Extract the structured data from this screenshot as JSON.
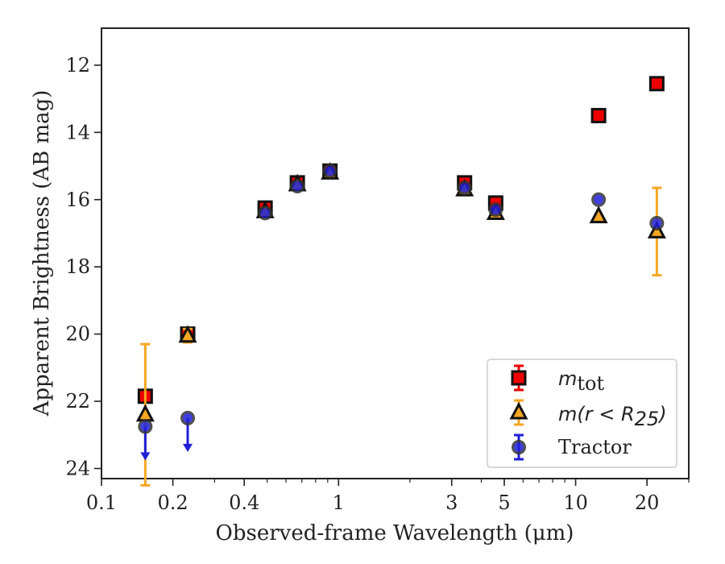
{
  "chart_data": {
    "type": "scatter",
    "xlabel": "Observed-frame Wavelength (μm)",
    "ylabel": "Apparent Brightness (AB mag)",
    "x_scale": "log",
    "xlim": [
      0.1,
      30
    ],
    "ylim": [
      24.3,
      10.9
    ],
    "x_ticks": [
      0.1,
      0.2,
      0.4,
      1,
      3,
      5,
      10,
      20
    ],
    "x_tick_labels": [
      "0.1",
      "0.2",
      "0.4",
      "1",
      "3",
      "5",
      "10",
      "20"
    ],
    "y_ticks": [
      12,
      14,
      16,
      18,
      20,
      22,
      24
    ],
    "y_tick_labels": [
      "12",
      "14",
      "16",
      "18",
      "20",
      "22",
      "24"
    ],
    "grid": false,
    "legend_position": "lower-right",
    "series": [
      {
        "name": "m_tot",
        "color": "#ee0000",
        "edge": "#111111",
        "marker": "square",
        "points": [
          {
            "x": 0.153,
            "y": 21.85,
            "err": 0.1
          },
          {
            "x": 0.231,
            "y": 20.0,
            "err": 0.1
          },
          {
            "x": 0.49,
            "y": 16.25
          },
          {
            "x": 0.67,
            "y": 15.5
          },
          {
            "x": 0.92,
            "y": 15.15
          },
          {
            "x": 3.4,
            "y": 15.5
          },
          {
            "x": 4.6,
            "y": 16.1
          },
          {
            "x": 12.5,
            "y": 13.5
          },
          {
            "x": 22.0,
            "y": 12.55
          }
        ]
      },
      {
        "name": "m(r<R25)",
        "color": "#f5a623",
        "edge": "#111111",
        "marker": "triangle",
        "points": [
          {
            "x": 0.153,
            "y": 22.4,
            "err_up": 2.1,
            "err_down": 2.1
          },
          {
            "x": 0.231,
            "y": 20.05,
            "err": 0.2
          },
          {
            "x": 0.49,
            "y": 16.35
          },
          {
            "x": 0.67,
            "y": 15.55
          },
          {
            "x": 0.92,
            "y": 15.2
          },
          {
            "x": 3.4,
            "y": 15.7
          },
          {
            "x": 4.6,
            "y": 16.4
          },
          {
            "x": 12.5,
            "y": 16.5
          },
          {
            "x": 22.0,
            "y": 16.95,
            "err_up": 1.3,
            "err_down": 1.3
          }
        ]
      },
      {
        "name": "Tractor",
        "color": "#1f1fd8",
        "edge": "#333333",
        "marker": "circle",
        "points": [
          {
            "x": 0.153,
            "y": 22.75,
            "upper_limit": true
          },
          {
            "x": 0.231,
            "y": 22.5,
            "upper_limit": true
          },
          {
            "x": 0.49,
            "y": 16.4
          },
          {
            "x": 0.67,
            "y": 15.6
          },
          {
            "x": 0.92,
            "y": 15.15
          },
          {
            "x": 3.4,
            "y": 15.65
          },
          {
            "x": 4.6,
            "y": 16.3
          },
          {
            "x": 12.5,
            "y": 16.0
          },
          {
            "x": 22.0,
            "y": 16.7
          }
        ]
      }
    ],
    "legend": [
      {
        "label_main": "m",
        "label_sub": "tot"
      },
      {
        "label_main": "m(r < R",
        "label_sub": "25",
        "label_tail": ")"
      },
      {
        "label_main": "Tractor"
      }
    ]
  }
}
